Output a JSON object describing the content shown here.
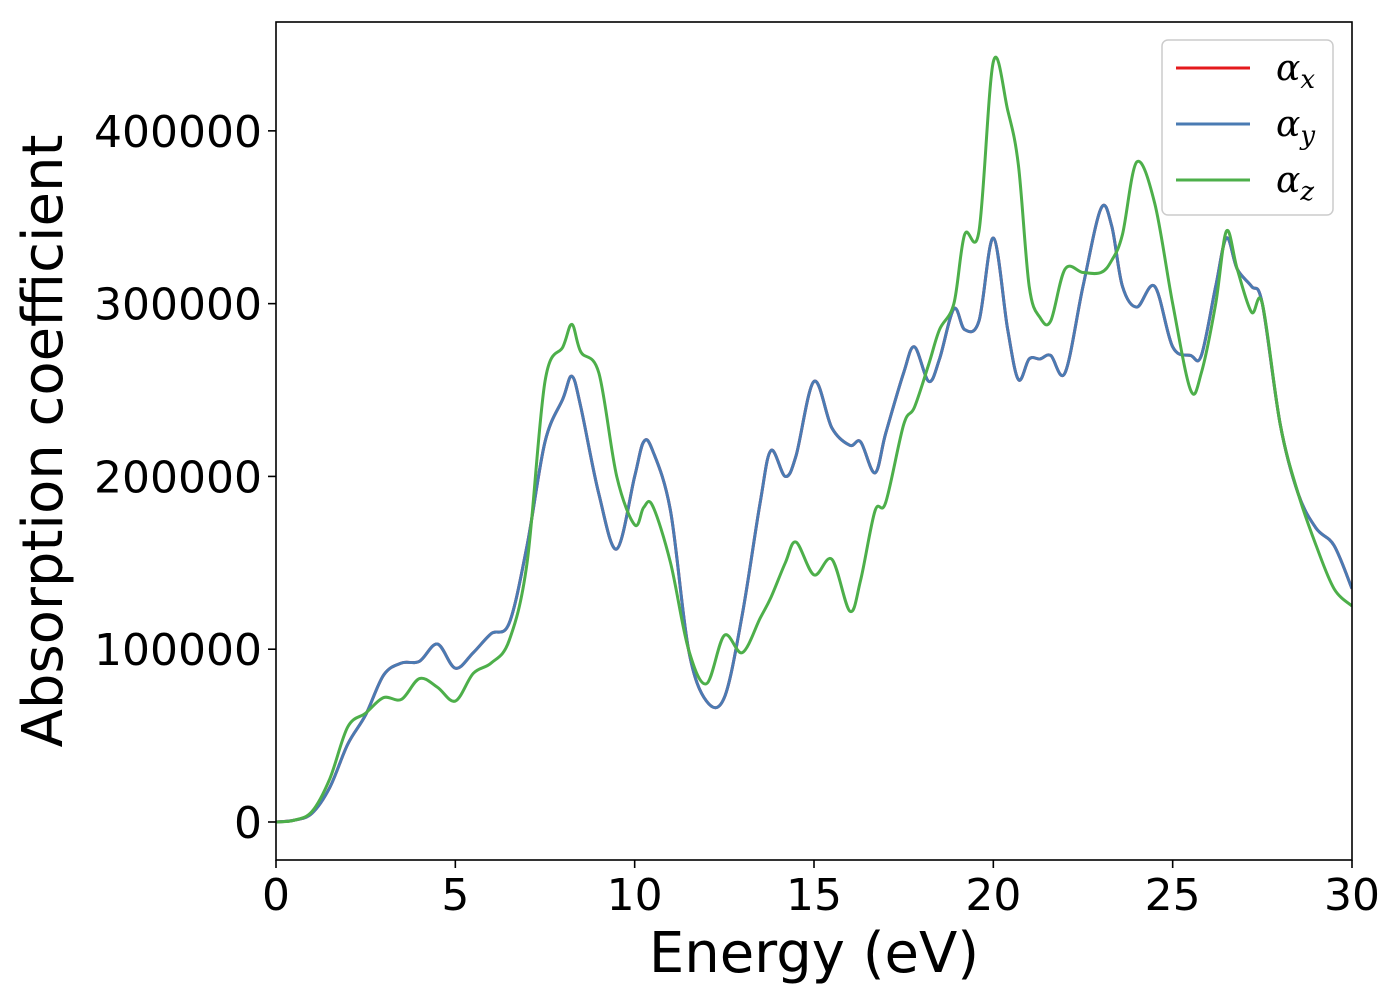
{
  "chart_data": {
    "type": "line",
    "title": "",
    "xlabel": "Energy (eV)",
    "ylabel": "Absorption coefficient",
    "xlim": [
      0,
      30
    ],
    "ylim": [
      -22000,
      463000
    ],
    "grid": false,
    "legend_position": "top-right",
    "x_ticks": [
      0,
      5,
      10,
      15,
      20,
      25,
      30
    ],
    "x_tick_labels": [
      "0",
      "5",
      "10",
      "15",
      "20",
      "25",
      "30"
    ],
    "y_ticks": [
      0,
      100000,
      200000,
      300000,
      400000
    ],
    "y_tick_labels": [
      "0",
      "100000",
      "200000",
      "300000",
      "400000"
    ],
    "x": [
      0,
      0.5,
      1,
      1.5,
      2,
      2.5,
      3,
      3.5,
      4,
      4.5,
      5,
      5.5,
      6,
      6.5,
      7,
      7.5,
      8,
      8.25,
      8.5,
      9,
      9.5,
      10,
      10.25,
      10.5,
      11,
      11.5,
      12,
      12.5,
      13,
      13.5,
      13.8,
      14.2,
      14.5,
      15,
      15.5,
      16,
      16.3,
      16.7,
      17,
      17.5,
      17.8,
      18.2,
      18.5,
      18.9,
      19.2,
      19.6,
      20,
      20.4,
      20.7,
      21,
      21.3,
      21.6,
      22,
      22.5,
      23,
      23.3,
      23.6,
      24,
      24.5,
      25,
      25.5,
      25.8,
      26.2,
      26.5,
      26.8,
      27.2,
      27.5,
      28,
      28.5,
      29,
      29.5,
      30
    ],
    "series": [
      {
        "name": "α_x",
        "color": "#e41a1c",
        "values": [
          0,
          1000,
          5000,
          20000,
          45000,
          62000,
          85000,
          92000,
          93000,
          103000,
          89000,
          98000,
          109000,
          115000,
          160000,
          220000,
          245000,
          258000,
          240000,
          190000,
          158000,
          200000,
          220000,
          215000,
          180000,
          100000,
          70000,
          72000,
          120000,
          185000,
          215000,
          200000,
          212000,
          255000,
          228000,
          218000,
          220000,
          202000,
          225000,
          260000,
          275000,
          255000,
          268000,
          297000,
          285000,
          290000,
          338000,
          285000,
          256000,
          268000,
          268000,
          270000,
          260000,
          310000,
          355000,
          345000,
          310000,
          298000,
          310000,
          275000,
          270000,
          270000,
          310000,
          338000,
          320000,
          310000,
          300000,
          230000,
          190000,
          170000,
          160000,
          135000
        ]
      },
      {
        "name": "α_y",
        "color": "#4a7bb3",
        "values": [
          0,
          1000,
          5000,
          20000,
          45000,
          62000,
          85000,
          92000,
          93000,
          103000,
          89000,
          98000,
          109000,
          115000,
          160000,
          220000,
          245000,
          258000,
          240000,
          190000,
          158000,
          200000,
          220000,
          215000,
          180000,
          100000,
          70000,
          72000,
          120000,
          185000,
          215000,
          200000,
          212000,
          255000,
          228000,
          218000,
          220000,
          202000,
          225000,
          260000,
          275000,
          255000,
          268000,
          297000,
          285000,
          290000,
          338000,
          285000,
          256000,
          268000,
          268000,
          270000,
          260000,
          310000,
          355000,
          345000,
          310000,
          298000,
          310000,
          275000,
          270000,
          270000,
          310000,
          338000,
          320000,
          310000,
          300000,
          230000,
          190000,
          170000,
          160000,
          135000
        ]
      },
      {
        "name": "α_z",
        "color": "#4daf4a",
        "values": [
          0,
          1000,
          6000,
          25000,
          55000,
          63000,
          72000,
          71000,
          83000,
          78000,
          70000,
          86000,
          92000,
          105000,
          150000,
          255000,
          275000,
          288000,
          272000,
          260000,
          200000,
          172000,
          182000,
          183000,
          150000,
          100000,
          80000,
          108000,
          98000,
          118000,
          130000,
          150000,
          162000,
          143000,
          152000,
          122000,
          140000,
          180000,
          185000,
          230000,
          240000,
          265000,
          285000,
          300000,
          340000,
          342000,
          440000,
          412000,
          380000,
          310000,
          292000,
          290000,
          320000,
          318000,
          318000,
          325000,
          340000,
          382000,
          358000,
          300000,
          250000,
          260000,
          300000,
          342000,
          320000,
          295000,
          300000,
          230000,
          190000,
          160000,
          135000,
          125000
        ]
      }
    ]
  },
  "legend": {
    "items": [
      {
        "label": "αx",
        "color": "#e41a1c"
      },
      {
        "label": "αy",
        "color": "#4a7bb3"
      },
      {
        "label": "αz",
        "color": "#4daf4a"
      }
    ]
  }
}
